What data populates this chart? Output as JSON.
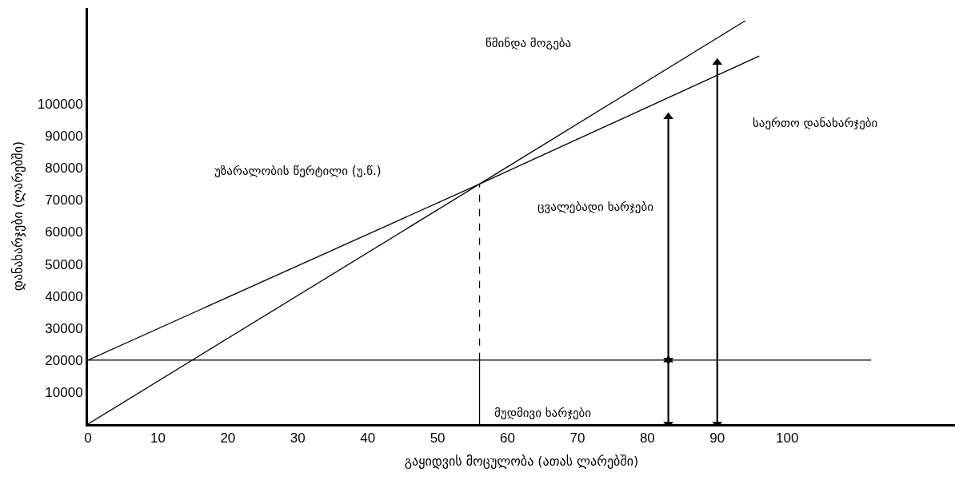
{
  "chart_data": {
    "type": "line",
    "xlabel": "გაყიდვის მოცულობა (ათას ლარებში)",
    "ylabel": "დანახარჯები (ლარებში)",
    "xlim": [
      0,
      124
    ],
    "ylim": [
      0,
      130000
    ],
    "xticks": [
      0,
      10,
      20,
      30,
      40,
      50,
      60,
      70,
      80,
      90,
      100
    ],
    "yticks": [
      10000,
      20000,
      30000,
      40000,
      50000,
      60000,
      70000,
      80000,
      90000,
      100000
    ],
    "series": [
      {
        "x": [
          0,
          56,
          94
        ],
        "values": [
          0,
          75000,
          126000
        ],
        "color": "#000000"
      },
      {
        "x": [
          0,
          56,
          96
        ],
        "values": [
          20000,
          75000,
          115000
        ],
        "color": "#000000"
      },
      {
        "x": [
          0,
          112
        ],
        "values": [
          20000,
          20000
        ],
        "color": "#000000"
      },
      {
        "x": [
          56,
          56
        ],
        "values": [
          0,
          20000
        ],
        "color": "#000000"
      },
      {
        "x": [
          56,
          56
        ],
        "values": [
          20000,
          75000
        ],
        "color": "#000000",
        "line_style": "dashed"
      },
      {
        "x": [
          83,
          83
        ],
        "values": [
          20000,
          96000
        ],
        "color": "#000000",
        "marker": "triangle"
      },
      {
        "x": [
          83,
          83
        ],
        "values": [
          0,
          20000
        ],
        "color": "#000000",
        "marker": "triangle"
      },
      {
        "x": [
          90,
          90
        ],
        "values": [
          0,
          113000
        ],
        "color": "#000000",
        "marker": "triangle"
      }
    ],
    "annotations": [
      "წმინდა მოგება",
      "საერთო დანახარჯები",
      "უზარალობის წერტილი (უ.წ.)",
      "ცვალებადი ხარჯები",
      "მუდმივი ხარჯები"
    ]
  }
}
